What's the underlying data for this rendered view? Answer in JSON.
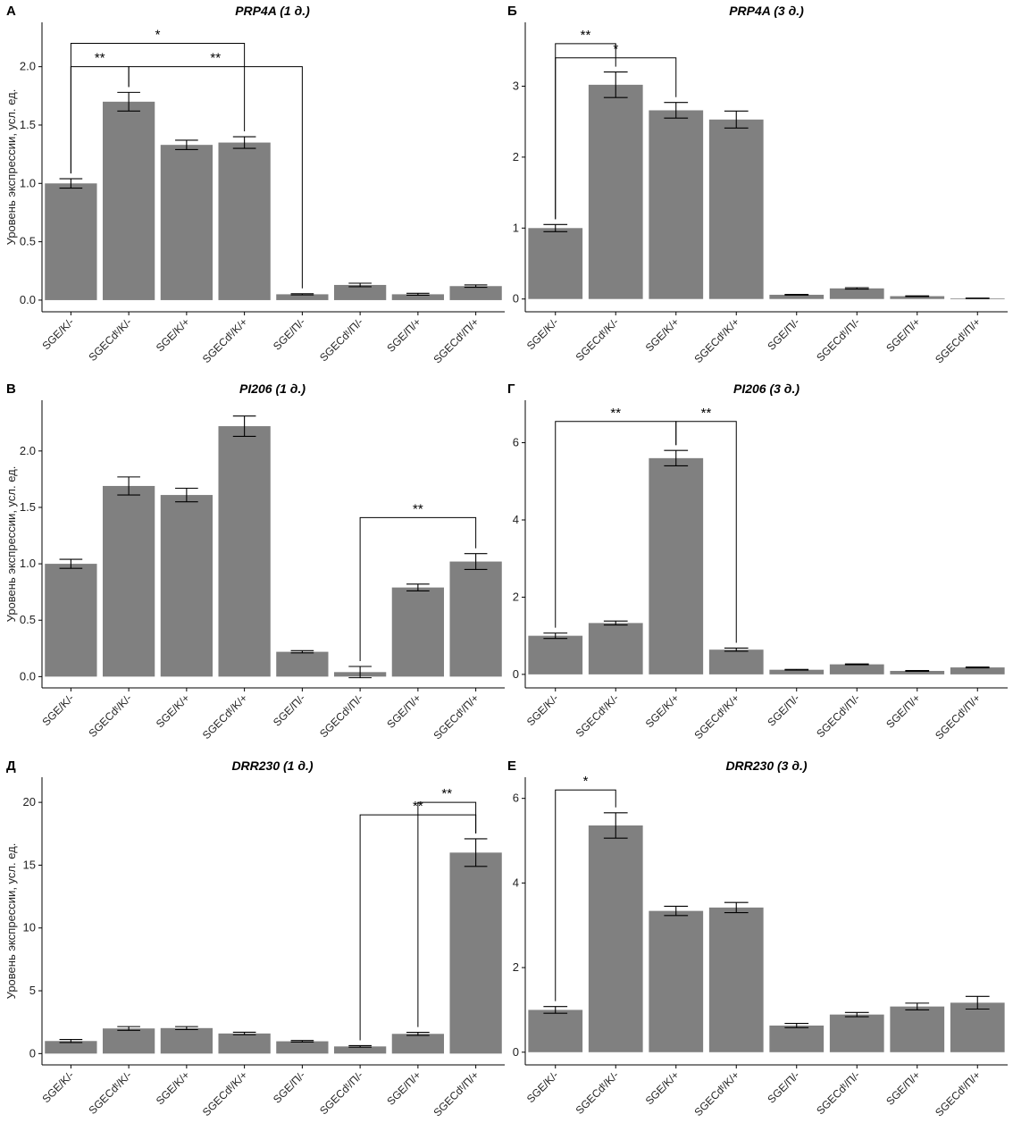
{
  "figure": {
    "bar_color": "#808080",
    "axis_color": "#000000",
    "error_color": "#000000",
    "bracket_color": "#000000"
  },
  "chart_data": [
    {
      "type": "bar",
      "panel_label": "А",
      "title": "PRP4A (1 д.)",
      "ylabel": "Уровень экспрессии, усл. ед.",
      "xlabel": "",
      "ylim": [
        -0.1,
        2.38
      ],
      "yticks": [
        0.0,
        0.5,
        1.0,
        1.5,
        2.0
      ],
      "ytick_labels": [
        "0.0",
        "0.5",
        "1.0",
        "1.5",
        "2.0"
      ],
      "categories": [
        "SGE/K/-",
        "SGECdᵗ/K/-",
        "SGE/K/+",
        "SGECdᵗ/K/+",
        "SGE/П/-",
        "SGECdᵗ/П/-",
        "SGE/П/+",
        "SGECdᵗ/П/+"
      ],
      "values": [
        1.0,
        1.7,
        1.33,
        1.35,
        0.05,
        0.13,
        0.05,
        0.12
      ],
      "errors": [
        0.04,
        0.08,
        0.04,
        0.05,
        0.005,
        0.015,
        0.008,
        0.01
      ],
      "significance": [
        {
          "from": 0,
          "to": 3,
          "label": "*",
          "y": 2.2
        },
        {
          "from": 0,
          "to": 1,
          "label": "**",
          "y": 2.0
        },
        {
          "from": 1,
          "to": 4,
          "label": "**",
          "y": 2.0
        }
      ]
    },
    {
      "type": "bar",
      "panel_label": "Б",
      "title": "PRP4A (3 д.)",
      "ylabel": "",
      "xlabel": "",
      "ylim": [
        -0.18,
        3.9
      ],
      "yticks": [
        0,
        1,
        2,
        3
      ],
      "ytick_labels": [
        "0",
        "1",
        "2",
        "3"
      ],
      "categories": [
        "SGE/K/-",
        "SGECdᵗ/K/-",
        "SGE/K/+",
        "SGECdᵗ/K/+",
        "SGE/П/-",
        "SGECdᵗ/П/-",
        "SGE/П/+",
        "SGECdᵗ/П/+"
      ],
      "values": [
        1.0,
        3.02,
        2.66,
        2.53,
        0.06,
        0.15,
        0.04,
        0.01
      ],
      "errors": [
        0.05,
        0.18,
        0.11,
        0.12,
        0.005,
        0.01,
        0.005,
        0.003
      ],
      "significance": [
        {
          "from": 0,
          "to": 1,
          "label": "**",
          "y": 3.6
        },
        {
          "from": 0,
          "to": 2,
          "label": "*",
          "y": 3.4
        }
      ]
    },
    {
      "type": "bar",
      "panel_label": "В",
      "title": "PI206 (1 д.)",
      "ylabel": "Уровень экспрессии, усл. ед.",
      "xlabel": "",
      "ylim": [
        -0.1,
        2.45
      ],
      "yticks": [
        0.0,
        0.5,
        1.0,
        1.5,
        2.0
      ],
      "ytick_labels": [
        "0.0",
        "0.5",
        "1.0",
        "1.5",
        "2.0"
      ],
      "categories": [
        "SGE/K/-",
        "SGECdᵗ/K/-",
        "SGE/K/+",
        "SGECdᵗ/K/+",
        "SGE/П/-",
        "SGECdᵗ/П/-",
        "SGE/П/+",
        "SGECdᵗ/П/+"
      ],
      "values": [
        1.0,
        1.69,
        1.61,
        2.22,
        0.22,
        0.04,
        0.79,
        1.02
      ],
      "errors": [
        0.04,
        0.08,
        0.06,
        0.09,
        0.01,
        0.05,
        0.03,
        0.07
      ],
      "significance": [
        {
          "from": 5,
          "to": 7,
          "label": "**",
          "y": 1.41
        }
      ]
    },
    {
      "type": "bar",
      "panel_label": "Г",
      "title": "PI206 (3 д.)",
      "ylabel": "",
      "xlabel": "",
      "ylim": [
        -0.35,
        7.1
      ],
      "yticks": [
        0,
        2,
        4,
        6
      ],
      "ytick_labels": [
        "0",
        "2",
        "4",
        "6"
      ],
      "categories": [
        "SGE/K/-",
        "SGECdᵗ/K/-",
        "SGE/K/+",
        "SGECdᵗ/K/+",
        "SGE/П/-",
        "SGECdᵗ/П/-",
        "SGE/П/+",
        "SGECdᵗ/П/+"
      ],
      "values": [
        1.0,
        1.33,
        5.6,
        0.64,
        0.12,
        0.26,
        0.09,
        0.18
      ],
      "errors": [
        0.07,
        0.05,
        0.2,
        0.04,
        0.01,
        0.01,
        0.01,
        0.01
      ],
      "significance": [
        {
          "from": 0,
          "to": 2,
          "label": "**",
          "y": 6.55
        },
        {
          "from": 2,
          "to": 3,
          "label": "**",
          "y": 6.55
        }
      ]
    },
    {
      "type": "bar",
      "panel_label": "Д",
      "title": "DRR230 (1 д.)",
      "ylabel": "Уровень экспрессии, усл. ед.",
      "xlabel": "",
      "ylim": [
        -0.9,
        22.0
      ],
      "yticks": [
        0,
        5,
        10,
        15,
        20
      ],
      "ytick_labels": [
        "0",
        "5",
        "10",
        "15",
        "20"
      ],
      "categories": [
        "SGE/K/-",
        "SGECdᵗ/K/-",
        "SGE/K/+",
        "SGECdᵗ/K/+",
        "SGE/П/-",
        "SGECdᵗ/П/-",
        "SGE/П/+",
        "SGECdᵗ/П/+"
      ],
      "values": [
        1.0,
        2.0,
        2.03,
        1.6,
        0.98,
        0.57,
        1.57,
        16.0
      ],
      "errors": [
        0.12,
        0.15,
        0.12,
        0.1,
        0.06,
        0.06,
        0.12,
        1.1
      ],
      "significance": [
        {
          "from": 5,
          "to": 7,
          "label": "**",
          "y": 19.0
        },
        {
          "from": 6,
          "to": 7,
          "label": "**",
          "y": 20.0
        }
      ]
    },
    {
      "type": "bar",
      "panel_label": "Е",
      "title": "DRR230 (3 д.)",
      "ylabel": "",
      "xlabel": "",
      "ylim": [
        -0.3,
        6.5
      ],
      "yticks": [
        0,
        2,
        4,
        6
      ],
      "ytick_labels": [
        "0",
        "2",
        "4",
        "6"
      ],
      "categories": [
        "SGE/K/-",
        "SGECdᵗ/K/-",
        "SGE/K/+",
        "SGECdᵗ/K/+",
        "SGE/П/-",
        "SGECdᵗ/П/-",
        "SGE/П/+",
        "SGECdᵗ/П/+"
      ],
      "values": [
        1.0,
        5.36,
        3.34,
        3.42,
        0.63,
        0.89,
        1.08,
        1.17
      ],
      "errors": [
        0.08,
        0.3,
        0.11,
        0.12,
        0.05,
        0.05,
        0.08,
        0.15
      ],
      "significance": [
        {
          "from": 0,
          "to": 1,
          "label": "*",
          "y": 6.2
        }
      ]
    }
  ]
}
